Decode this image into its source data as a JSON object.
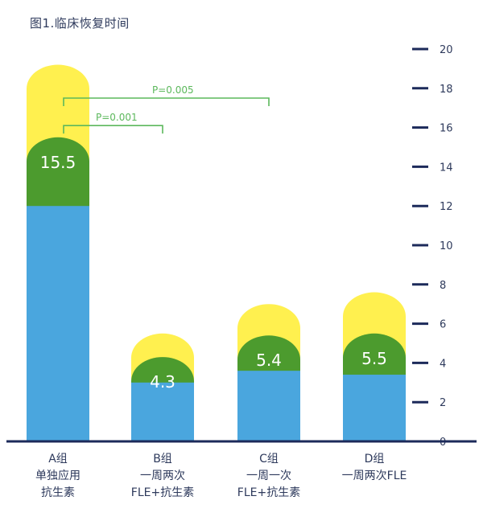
{
  "title": "图1.临床恢复时间",
  "chart_data": {
    "type": "bar",
    "categories": [
      [
        "A组",
        "单独应用",
        "抗生素"
      ],
      [
        "B组",
        "一周两次",
        "FLE+抗生素"
      ],
      [
        "C组",
        "一周一次",
        "FLE+抗生素"
      ],
      [
        "D组",
        "一周两次FLE"
      ]
    ],
    "series": [
      {
        "values": [
          12.0,
          3.0,
          3.6,
          3.4
        ],
        "color": "#4aa6de"
      },
      {
        "values": [
          15.5,
          4.3,
          5.4,
          5.5
        ],
        "color": "#4c9b2e"
      },
      {
        "values": [
          19.2,
          5.5,
          7.0,
          7.6
        ],
        "color": "#fff04f"
      }
    ],
    "data_labels": [
      "15.5",
      "4.3",
      "5.4",
      "5.5"
    ],
    "ylim": [
      0,
      20
    ],
    "yticks": [
      0,
      2,
      4,
      6,
      8,
      10,
      12,
      14,
      16,
      18,
      20
    ],
    "y_axis_side": "right",
    "grid": false,
    "annotations": [
      {
        "text": "P=0.005",
        "from": 0,
        "to": 2
      },
      {
        "text": "P=0.001",
        "from": 0,
        "to": 1
      }
    ],
    "annotation_color": "#5cb85c",
    "axis_color": "#1c2a5a"
  }
}
